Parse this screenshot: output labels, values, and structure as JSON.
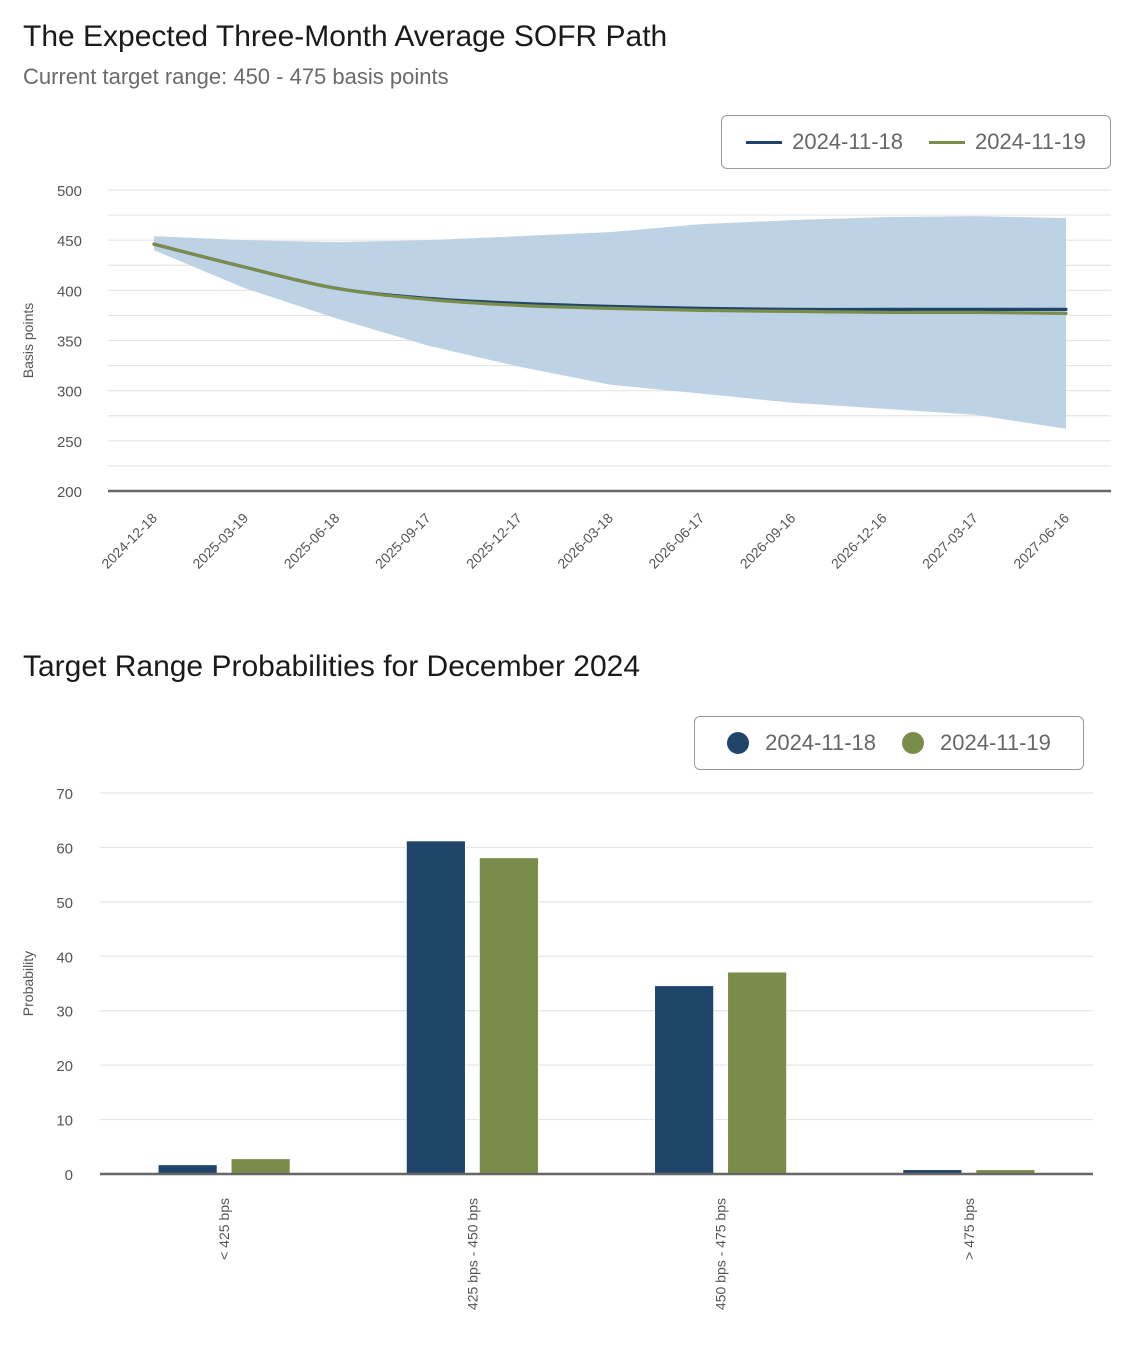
{
  "colors": {
    "series1": "#20456a",
    "series2": "#7a8c4a",
    "band": "#b7cfe3",
    "grid": "#e5e5e5",
    "axis": "#666666",
    "tick_text": "#555555"
  },
  "sofr": {
    "title": "The Expected Three-Month Average SOFR Path",
    "subtitle": "Current target range: 450 - 475 basis points",
    "legend": [
      {
        "label": "2024-11-18"
      },
      {
        "label": "2024-11-19"
      }
    ]
  },
  "probs": {
    "title": "Target Range Probabilities for December 2024",
    "legend": [
      {
        "label": "2024-11-18"
      },
      {
        "label": "2024-11-19"
      }
    ]
  },
  "chart_data": [
    {
      "type": "line",
      "title": "The Expected Three-Month Average SOFR Path",
      "subtitle": "Current target range: 450 - 475 basis points",
      "xlabel": "",
      "ylabel": "Basis points",
      "ylim": [
        200,
        500
      ],
      "yticks": [
        200,
        250,
        300,
        350,
        400,
        450,
        500
      ],
      "minor_gridlines_every": 25,
      "grid": true,
      "legend_position": "top-right",
      "x": [
        "2024-12-18",
        "2025-03-19",
        "2025-06-18",
        "2025-09-17",
        "2025-12-17",
        "2026-03-18",
        "2026-06-17",
        "2026-09-16",
        "2026-12-16",
        "2027-03-17",
        "2027-06-16"
      ],
      "series": [
        {
          "name": "2024-11-18",
          "values": [
            446,
            423,
            402,
            392,
            387,
            384,
            382,
            381,
            381,
            381,
            381
          ]
        },
        {
          "name": "2024-11-19",
          "values": [
            446,
            423,
            402,
            391,
            385,
            382,
            380,
            379,
            378,
            378,
            377
          ]
        }
      ],
      "band": {
        "name": "confidence range",
        "upper": [
          454,
          450,
          448,
          450,
          454,
          458,
          466,
          470,
          473,
          474,
          472
        ],
        "lower": [
          440,
          402,
          372,
          345,
          324,
          306,
          297,
          288,
          282,
          276,
          262
        ]
      }
    },
    {
      "type": "bar",
      "title": "Target Range Probabilities for December 2024",
      "xlabel": "",
      "ylabel": "Probability",
      "ylim": [
        0,
        70
      ],
      "yticks": [
        0,
        10,
        20,
        30,
        40,
        50,
        60,
        70
      ],
      "grid": true,
      "legend_position": "top-right",
      "categories": [
        "< 425 bps",
        "425 bps - 450 bps",
        "450 bps - 475 bps",
        "> 475 bps"
      ],
      "series": [
        {
          "name": "2024-11-18",
          "values": [
            1.7,
            61.2,
            34.6,
            0.8
          ]
        },
        {
          "name": "2024-11-19",
          "values": [
            2.8,
            58.1,
            37.1,
            0.8
          ]
        }
      ]
    }
  ]
}
